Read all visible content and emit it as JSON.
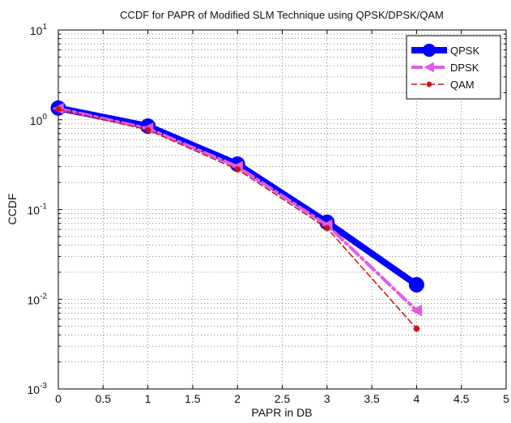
{
  "chart_data": {
    "type": "line",
    "title": "CCDF for PAPR of Modified SLM Technique using QPSK/DPSK/QAM",
    "xlabel": "PAPR in DB",
    "ylabel": "CCDF",
    "xlim": [
      0,
      5
    ],
    "ylim": [
      0.001,
      10
    ],
    "yscale": "log",
    "grid": true,
    "legend_position": "top-right",
    "xticks": [
      "0",
      "0.5",
      "1",
      "1.5",
      "2",
      "2.5",
      "3",
      "3.5",
      "4",
      "4.5",
      "5"
    ],
    "yticks": [
      {
        "base": "10",
        "exp": "-3",
        "value": 0.001
      },
      {
        "base": "10",
        "exp": "-2",
        "value": 0.01
      },
      {
        "base": "10",
        "exp": "-1",
        "value": 0.1
      },
      {
        "base": "10",
        "exp": "0",
        "value": 1
      },
      {
        "base": "10",
        "exp": "1",
        "value": 10
      }
    ],
    "x": [
      0,
      1,
      2,
      3,
      4
    ],
    "series": [
      {
        "name": "QPSK",
        "values": [
          1.35,
          0.85,
          0.32,
          0.072,
          0.0145
        ],
        "color": "#0000ff",
        "style": "solid",
        "marker": "circle"
      },
      {
        "name": "DPSK",
        "values": [
          1.33,
          0.8,
          0.3,
          0.067,
          0.0075
        ],
        "color": "#e35be3",
        "style": "dashdot",
        "marker": "triangle-left"
      },
      {
        "name": "QAM",
        "values": [
          1.31,
          0.77,
          0.28,
          0.062,
          0.0047
        ],
        "color": "#cc1111",
        "style": "dashed",
        "marker": "star"
      }
    ]
  }
}
